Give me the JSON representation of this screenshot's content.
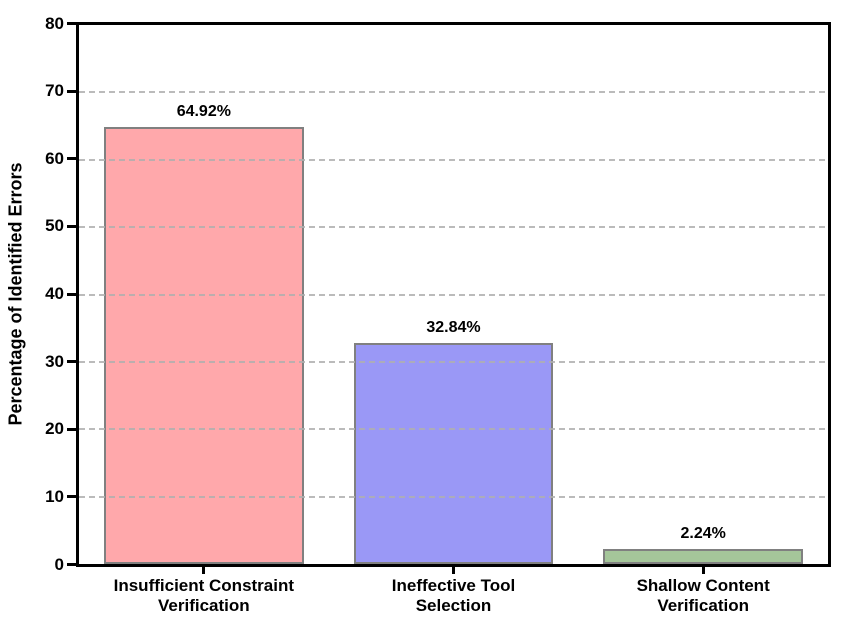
{
  "chart_data": {
    "type": "bar",
    "title": "",
    "categories": [
      "Insufficient Constraint\nVerification",
      "Ineffective Tool\nSelection",
      "Shallow Content\nVerification"
    ],
    "values": [
      64.92,
      32.84,
      2.24
    ],
    "value_labels": [
      "64.92%",
      "32.84%",
      "2.24%"
    ],
    "bar_colors": [
      "#ffa8ab",
      "#9a98f6",
      "#a5c69a"
    ],
    "bar_edge_color": "#808080",
    "xlabel": "",
    "ylabel": "Percentage of Identified Errors",
    "ylim": [
      0,
      80
    ],
    "ytick_step": 10,
    "ytick_labels": [
      "0",
      "10",
      "20",
      "30",
      "40",
      "50",
      "60",
      "70",
      "80"
    ],
    "grid": "horizontal-dashed-over-bars",
    "legend": "none",
    "spine_color": "#000000",
    "gridline_color": "#bdbdbd"
  }
}
